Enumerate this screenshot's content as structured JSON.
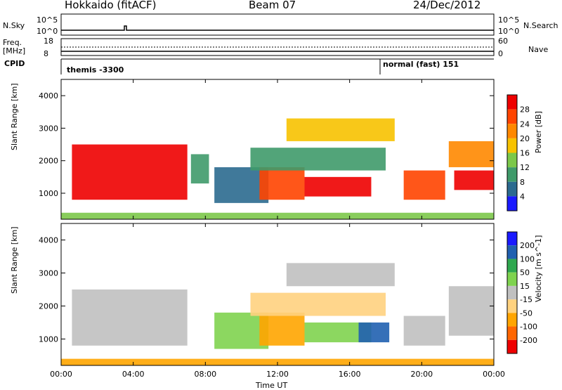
{
  "header": {
    "station": "Hokkaido (fitACF)",
    "beam": "Beam 07",
    "date": "24/Dec/2012"
  },
  "left_labels": {
    "nsky": "N.Sky",
    "nsky_hi": "10^5",
    "nsky_lo": "10^0",
    "freq": "Freq.",
    "freq_unit": "[MHz]",
    "freq_hi": "18",
    "freq_lo": "8",
    "cpid": "CPID"
  },
  "right_labels": {
    "nsearch": "N.Search",
    "nsearch_hi": "10^5",
    "nsearch_lo": "10^0",
    "nave": "Nave",
    "nave_hi": "60",
    "nave_lo": "0"
  },
  "cpid_labels": {
    "first": "themis -3300",
    "second": "normal (fast) 151"
  },
  "colors": {
    "power_scale": [
      "#1a1aff",
      "#2b6a8f",
      "#3f9a6a",
      "#7cc84a",
      "#f7c200",
      "#ff8800",
      "#ff4400",
      "#ee0000"
    ],
    "velocity_scale": [
      "#ee0000",
      "#ff6600",
      "#ffa500",
      "#ffd27f",
      "#c0c0c0",
      "#7fd34f",
      "#2fa84f",
      "#2060b0",
      "#1a1aff"
    ]
  },
  "chart_data": [
    {
      "type": "heatmap",
      "name": "power",
      "xlabel": "",
      "ylabel": "Slant Range [km]",
      "xlim": [
        0,
        24
      ],
      "ylim": [
        200,
        4500
      ],
      "yticks": [
        "1000",
        "2000",
        "3000",
        "4000"
      ],
      "colorbar_label": "Power [dB]",
      "colorbar_ticks": [
        "28",
        "24",
        "20",
        "16",
        "12",
        "8",
        "4"
      ],
      "colorbar_range": [
        0,
        32
      ],
      "echo_regions": [
        {
          "t0": 0.6,
          "t1": 7.0,
          "r0": 800,
          "r1": 2500,
          "level": 30
        },
        {
          "t0": 7.2,
          "t1": 8.2,
          "r0": 1300,
          "r1": 2200,
          "level": 8
        },
        {
          "t0": 8.5,
          "t1": 11.5,
          "r0": 700,
          "r1": 1800,
          "level": 6
        },
        {
          "t0": 11.0,
          "t1": 13.5,
          "r0": 800,
          "r1": 1800,
          "level": 26
        },
        {
          "t0": 13.5,
          "t1": 17.2,
          "r0": 900,
          "r1": 1500,
          "level": 28
        },
        {
          "t0": 10.5,
          "t1": 18.0,
          "r0": 1700,
          "r1": 2400,
          "level": 10
        },
        {
          "t0": 12.5,
          "t1": 18.5,
          "r0": 2600,
          "r1": 3300,
          "level": 18
        },
        {
          "t0": 19.0,
          "t1": 21.3,
          "r0": 800,
          "r1": 1700,
          "level": 26
        },
        {
          "t0": 21.8,
          "t1": 24.0,
          "r0": 1100,
          "r1": 1700,
          "level": 28
        },
        {
          "t0": 21.5,
          "t1": 24.0,
          "r0": 1800,
          "r1": 2600,
          "level": 20
        },
        {
          "t0": 0.0,
          "t1": 24.0,
          "r0": 200,
          "r1": 400,
          "level": 12
        }
      ]
    },
    {
      "type": "heatmap",
      "name": "velocity",
      "xlabel": "Time UT",
      "ylabel": "Slant Range [km]",
      "xlim": [
        0,
        24
      ],
      "ylim": [
        200,
        4500
      ],
      "xticks": [
        "00:00",
        "04:00",
        "08:00",
        "12:00",
        "16:00",
        "20:00",
        "00:00"
      ],
      "yticks": [
        "1000",
        "2000",
        "3000",
        "4000"
      ],
      "colorbar_label": "Velocity [m s^-1]",
      "colorbar_ticks": [
        "200",
        "100",
        "50",
        "15",
        "-15",
        "-50",
        "-100",
        "-200"
      ],
      "colorbar_range": [
        -250,
        250
      ],
      "echo_regions": [
        {
          "t0": 0.6,
          "t1": 7.0,
          "r0": 800,
          "r1": 2500,
          "value": 0
        },
        {
          "t0": 8.5,
          "t1": 11.5,
          "r0": 700,
          "r1": 1800,
          "value": 40
        },
        {
          "t0": 11.0,
          "t1": 13.5,
          "r0": 800,
          "r1": 1800,
          "value": -60
        },
        {
          "t0": 13.5,
          "t1": 17.2,
          "r0": 900,
          "r1": 1500,
          "value": 45
        },
        {
          "t0": 16.5,
          "t1": 18.2,
          "r0": 900,
          "r1": 1500,
          "value": 120
        },
        {
          "t0": 10.5,
          "t1": 18.0,
          "r0": 1700,
          "r1": 2400,
          "value": -40
        },
        {
          "t0": 12.5,
          "t1": 18.5,
          "r0": 2600,
          "r1": 3300,
          "value": 0
        },
        {
          "t0": 19.0,
          "t1": 21.3,
          "r0": 800,
          "r1": 1700,
          "value": 0
        },
        {
          "t0": 21.5,
          "t1": 24.0,
          "r0": 1100,
          "r1": 2600,
          "value": 0
        },
        {
          "t0": 0.0,
          "t1": 24.0,
          "r0": 200,
          "r1": 400,
          "value": -50
        }
      ]
    }
  ]
}
